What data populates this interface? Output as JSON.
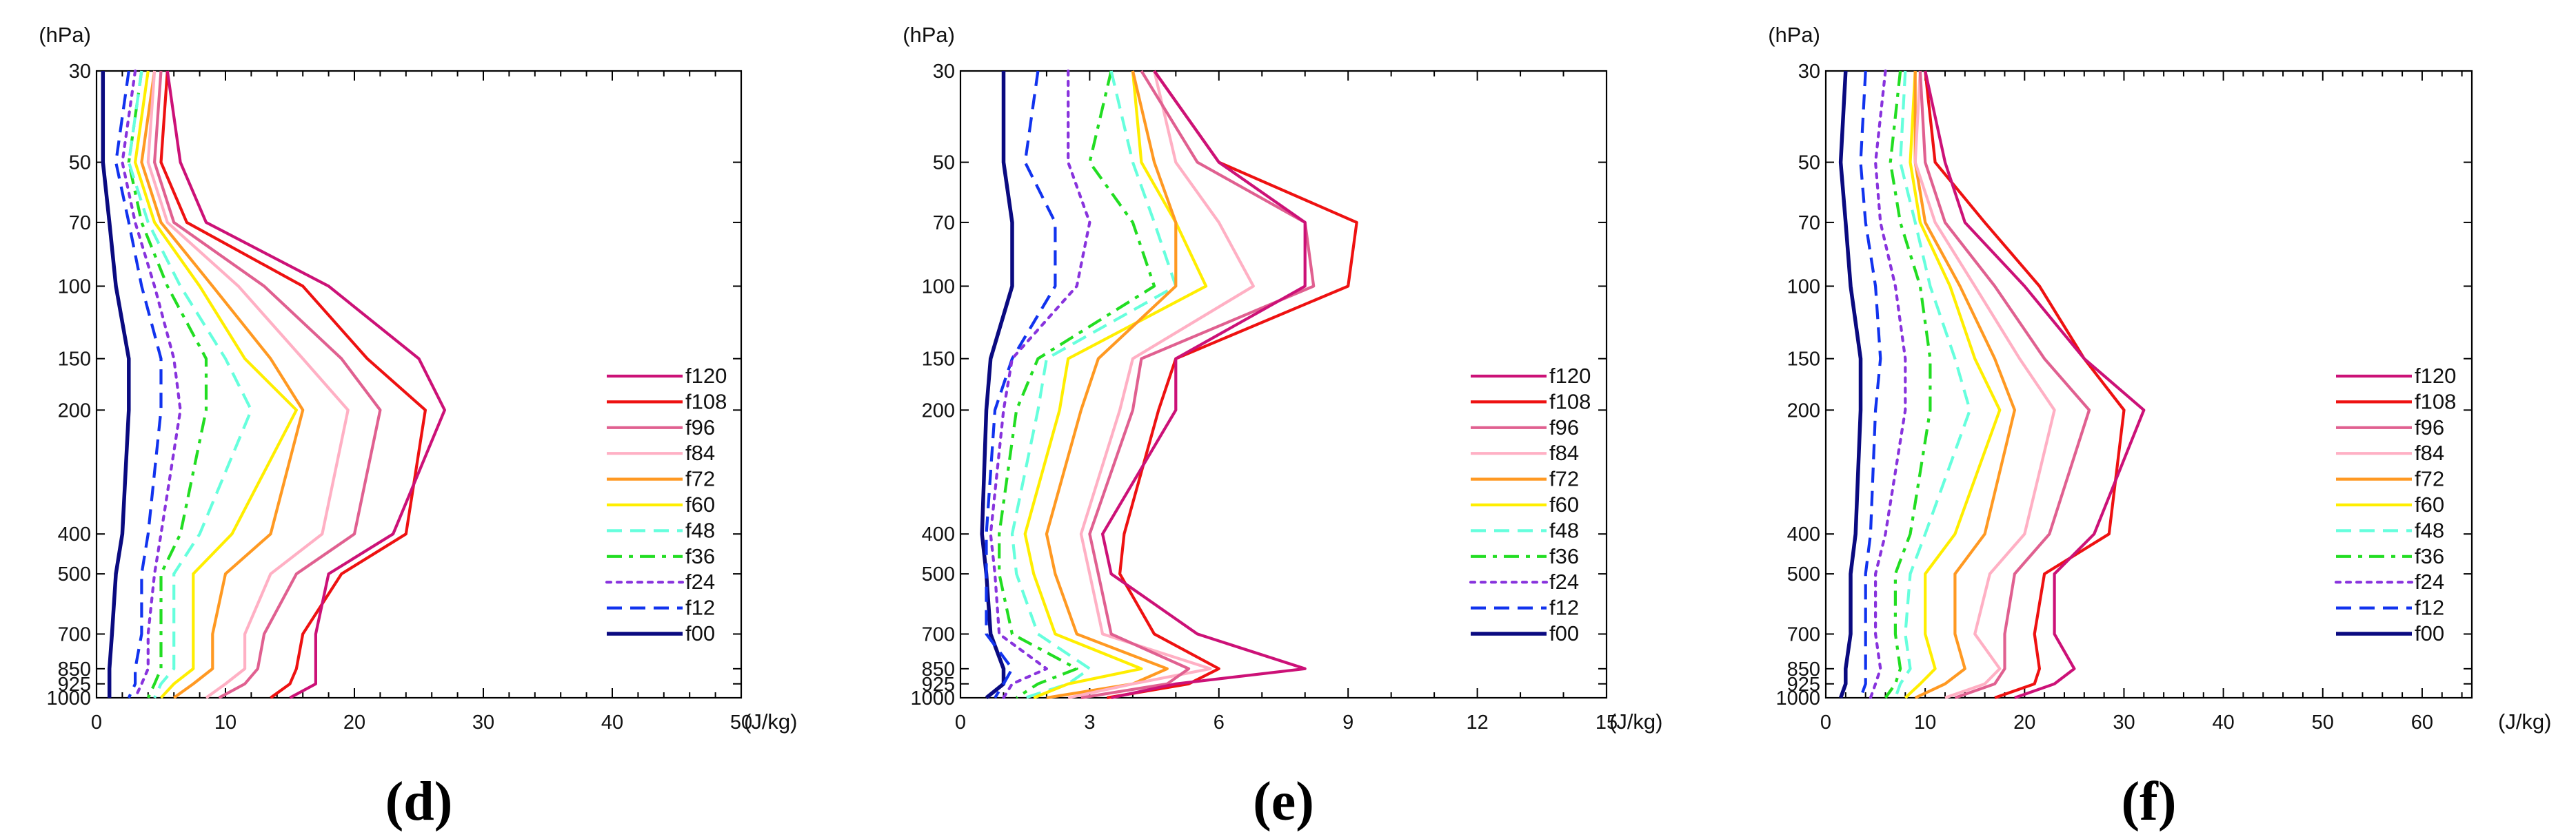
{
  "chart_data": [
    {
      "type": "line",
      "panel": "d",
      "label_text": "(d)",
      "ylabel": "(hPa)",
      "xlabel": "(J/kg)",
      "xlim": [
        0,
        50
      ],
      "xticks": [
        "0",
        "10",
        "20",
        "30",
        "40",
        "50"
      ],
      "pressure_levels": [
        30,
        50,
        70,
        100,
        150,
        200,
        400,
        500,
        700,
        850,
        925,
        1000
      ],
      "yticks": [
        "30",
        "50",
        "70",
        "100",
        "150",
        "200",
        "400",
        "500",
        "700",
        "850",
        "925",
        "1000"
      ],
      "series": [
        {
          "name": "f120",
          "color": "#cc1177",
          "dash": "solid",
          "values": [
            5.5,
            6.5,
            8.5,
            18,
            25,
            27,
            23,
            18,
            17,
            17,
            17,
            15
          ]
        },
        {
          "name": "f108",
          "color": "#ee1111",
          "dash": "solid",
          "values": [
            5.5,
            5,
            7,
            16,
            21,
            25.5,
            24,
            19,
            16,
            15.5,
            15,
            13.5
          ]
        },
        {
          "name": "f96",
          "color": "#e06090",
          "dash": "solid",
          "values": [
            5,
            4.5,
            6,
            13,
            19,
            22,
            20,
            15.5,
            13,
            12.5,
            11.5,
            9.5
          ]
        },
        {
          "name": "f84",
          "color": "#ffb0c4",
          "dash": "solid",
          "values": [
            4.5,
            4,
            5.5,
            11,
            16,
            19.5,
            17.5,
            13.5,
            11.5,
            11.5,
            10,
            8.5
          ]
        },
        {
          "name": "f72",
          "color": "#ff9922",
          "dash": "solid",
          "values": [
            4.5,
            3.5,
            5,
            9,
            13.5,
            16,
            13.5,
            10,
            9,
            9,
            7.5,
            6
          ]
        },
        {
          "name": "f60",
          "color": "#ffee00",
          "dash": "solid",
          "values": [
            4,
            3,
            4.5,
            8,
            11.5,
            15.5,
            10.5,
            7.5,
            7.5,
            7.5,
            6,
            5
          ]
        },
        {
          "name": "f48",
          "color": "#66ffdd",
          "dash": "dashed",
          "values": [
            3.5,
            2.5,
            4,
            6.5,
            10,
            12,
            8,
            6,
            6,
            6,
            5,
            4.5
          ]
        },
        {
          "name": "f36",
          "color": "#22dd22",
          "dash": "dashdot",
          "values": [
            3.5,
            2.5,
            3.5,
            5.5,
            8.5,
            8.5,
            6.5,
            5,
            5,
            5,
            4.5,
            4
          ]
        },
        {
          "name": "f24",
          "color": "#8833dd",
          "dash": "dotted",
          "values": [
            3,
            2,
            3,
            4.5,
            6,
            6.5,
            5,
            4.5,
            4,
            4,
            3.5,
            3
          ]
        },
        {
          "name": "f12",
          "color": "#1133ee",
          "dash": "dashed",
          "values": [
            2.5,
            1.5,
            2.5,
            3.5,
            5,
            5,
            4,
            3.5,
            3.5,
            3,
            3,
            2.5
          ]
        },
        {
          "name": "f00",
          "color": "#0a0a80",
          "dash": "solid",
          "values": [
            0.5,
            0.5,
            1,
            1.5,
            2.5,
            2.5,
            2,
            1.5,
            1.2,
            1,
            1,
            1
          ]
        }
      ]
    },
    {
      "type": "line",
      "panel": "e",
      "label_text": "(e)",
      "ylabel": "(hPa)",
      "xlabel": "(J/kg)",
      "xlim": [
        0,
        15
      ],
      "xticks": [
        "0",
        "3",
        "6",
        "9",
        "12",
        "15"
      ],
      "pressure_levels": [
        30,
        50,
        70,
        100,
        150,
        200,
        400,
        500,
        700,
        850,
        925,
        1000
      ],
      "yticks": [
        "30",
        "50",
        "70",
        "100",
        "150",
        "200",
        "400",
        "500",
        "700",
        "850",
        "925",
        "1000"
      ],
      "series": [
        {
          "name": "f120",
          "color": "#cc1177",
          "dash": "solid",
          "values": [
            4.5,
            6,
            8,
            8,
            5,
            5,
            3.3,
            3.5,
            5.5,
            8,
            5,
            3.5
          ]
        },
        {
          "name": "f108",
          "color": "#ee1111",
          "dash": "solid",
          "values": [
            4.5,
            6,
            9.2,
            9,
            5,
            4.6,
            3.8,
            3.7,
            4.5,
            6,
            5.3,
            3.4
          ]
        },
        {
          "name": "f96",
          "color": "#e06090",
          "dash": "solid",
          "values": [
            4.2,
            5.5,
            8,
            8.2,
            4.2,
            4,
            3,
            3.2,
            3.5,
            5.3,
            4.8,
            2.8
          ]
        },
        {
          "name": "f84",
          "color": "#ffb0c4",
          "dash": "solid",
          "values": [
            4.5,
            5,
            6,
            6.8,
            4,
            3.7,
            2.8,
            3,
            3.3,
            5.8,
            4,
            2.5
          ]
        },
        {
          "name": "f72",
          "color": "#ff9922",
          "dash": "solid",
          "values": [
            4,
            4.5,
            5,
            5,
            3.2,
            2.8,
            2,
            2.2,
            2.7,
            4.8,
            4,
            2
          ]
        },
        {
          "name": "f60",
          "color": "#ffee00",
          "dash": "solid",
          "values": [
            4,
            4.2,
            5,
            5.7,
            2.5,
            2.3,
            1.5,
            1.7,
            2.2,
            4.2,
            2.5,
            1.7
          ]
        },
        {
          "name": "f48",
          "color": "#66ffdd",
          "dash": "dashed",
          "values": [
            3.5,
            4,
            4.5,
            5,
            2,
            1.8,
            1.2,
            1.3,
            1.8,
            3,
            2.5,
            1.5
          ]
        },
        {
          "name": "f36",
          "color": "#22dd22",
          "dash": "dashdot",
          "values": [
            3.5,
            3,
            4,
            4.5,
            1.8,
            1.3,
            0.9,
            0.9,
            1.2,
            2.7,
            1.8,
            1.3
          ]
        },
        {
          "name": "f24",
          "color": "#8833dd",
          "dash": "dotted",
          "values": [
            2.5,
            2.5,
            3,
            2.7,
            1.2,
            1,
            0.7,
            0.8,
            0.9,
            2,
            1.2,
            1
          ]
        },
        {
          "name": "f12",
          "color": "#1133ee",
          "dash": "dashed",
          "values": [
            1.8,
            1.5,
            2.2,
            2.2,
            1.2,
            0.8,
            0.6,
            0.6,
            0.6,
            1.2,
            1,
            0.8
          ]
        },
        {
          "name": "f00",
          "color": "#0a0a80",
          "dash": "solid",
          "values": [
            1,
            1,
            1.2,
            1.2,
            0.7,
            0.6,
            0.5,
            0.6,
            0.7,
            1,
            1,
            0.6
          ]
        }
      ]
    },
    {
      "type": "line",
      "panel": "f",
      "label_text": "(f)",
      "ylabel": "(hPa)",
      "xlabel": "(J/kg)",
      "xlim": [
        0,
        65
      ],
      "xticks": [
        "0",
        "10",
        "20",
        "30",
        "40",
        "50",
        "60"
      ],
      "pressure_levels": [
        30,
        50,
        70,
        100,
        150,
        200,
        400,
        500,
        700,
        850,
        925,
        1000
      ],
      "yticks": [
        "30",
        "50",
        "70",
        "100",
        "150",
        "200",
        "400",
        "500",
        "700",
        "850",
        "925",
        "1000"
      ],
      "series": [
        {
          "name": "f120",
          "color": "#cc1177",
          "dash": "solid",
          "values": [
            10,
            12,
            14,
            20,
            26,
            32,
            27,
            23,
            23,
            25,
            23,
            19
          ]
        },
        {
          "name": "f108",
          "color": "#ee1111",
          "dash": "solid",
          "values": [
            10,
            11,
            16,
            21.5,
            26,
            30,
            28.5,
            22,
            21,
            21.5,
            21,
            17
          ]
        },
        {
          "name": "f96",
          "color": "#e06090",
          "dash": "solid",
          "values": [
            9.5,
            10,
            12,
            17,
            22,
            26.5,
            22.5,
            19,
            18,
            18,
            17,
            13
          ]
        },
        {
          "name": "f84",
          "color": "#ffb0c4",
          "dash": "solid",
          "values": [
            9.5,
            9,
            11,
            15,
            19.5,
            23,
            20,
            16.5,
            15,
            17.5,
            16,
            12
          ]
        },
        {
          "name": "f72",
          "color": "#ff9922",
          "dash": "solid",
          "values": [
            9,
            9,
            10,
            13.5,
            17,
            19,
            16,
            13,
            13,
            14,
            12,
            9
          ]
        },
        {
          "name": "f60",
          "color": "#ffee00",
          "dash": "solid",
          "values": [
            9,
            8.5,
            9.5,
            12.5,
            15,
            17.5,
            13,
            10,
            10,
            11,
            9.5,
            8
          ]
        },
        {
          "name": "f48",
          "color": "#66ffdd",
          "dash": "dashed",
          "values": [
            8,
            7.5,
            9,
            10.5,
            13,
            14.5,
            10,
            8.5,
            8,
            8.5,
            7.5,
            7
          ]
        },
        {
          "name": "f36",
          "color": "#22dd22",
          "dash": "dashdot",
          "values": [
            7.5,
            6.5,
            7.5,
            9.5,
            10.5,
            10.5,
            8.5,
            7,
            7,
            7.5,
            7,
            6
          ]
        },
        {
          "name": "f24",
          "color": "#8833dd",
          "dash": "dotted",
          "values": [
            6,
            5,
            5.5,
            7,
            8,
            8,
            6,
            5,
            5,
            5.5,
            5,
            4.5
          ]
        },
        {
          "name": "f12",
          "color": "#1133ee",
          "dash": "dashed",
          "values": [
            4,
            3.5,
            4,
            5,
            5.5,
            5,
            4.5,
            4,
            4,
            4,
            4,
            3.5
          ]
        },
        {
          "name": "f00",
          "color": "#0a0a80",
          "dash": "solid",
          "values": [
            2,
            1.5,
            2,
            2.5,
            3.5,
            3.5,
            3,
            2.5,
            2.5,
            2,
            2,
            1.5
          ]
        }
      ]
    }
  ]
}
